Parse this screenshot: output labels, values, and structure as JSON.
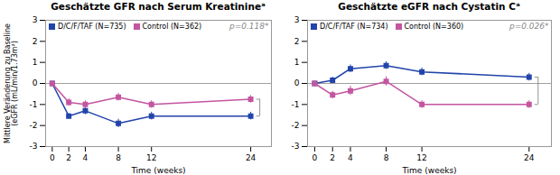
{
  "chart_data": [
    {
      "type": "line",
      "title": "Geschätzte GFR nach Serum Kreatinineᵃ",
      "xlabel": "Time (weeks)",
      "ylabel": "Mittlere Veränderung zu Baseline\n(eGFR (mL/min/1.73m²)",
      "x": [
        0,
        2,
        4,
        8,
        12,
        24
      ],
      "series": [
        {
          "name": "D/C/F/TAF (N=735)",
          "color": "#2244AA",
          "values": [
            0,
            -1.55,
            -1.3,
            -1.9,
            -1.55,
            -1.55
          ],
          "errors": [
            0,
            0.12,
            0.18,
            0.2,
            0.18,
            0.18
          ]
        },
        {
          "name": "Control (N=362)",
          "color": "#C455A0",
          "values": [
            0,
            -0.9,
            -1.0,
            -0.65,
            -1.0,
            -0.75
          ],
          "errors": [
            0,
            0.18,
            0.18,
            0.18,
            0.18,
            0.18
          ]
        }
      ],
      "marker": "square",
      "annotations": [
        "p=0.118*"
      ],
      "hline": 0,
      "xlim": [
        -0.8,
        26.5
      ],
      "xticks": [
        0,
        2,
        4,
        8,
        12,
        24
      ],
      "ylim": [
        -3,
        3
      ],
      "yticks": [
        -3,
        -2,
        -1,
        0,
        1,
        2,
        3
      ],
      "legend": "upper left",
      "grid": false
    },
    {
      "type": "line",
      "title": "Geschätzte eGFR nach Cystatin Cᵃ",
      "xlabel": "Time (weeks)",
      "x": [
        0,
        2,
        4,
        8,
        12,
        24
      ],
      "series": [
        {
          "name": "D/C/F/TAF (N=734)",
          "color": "#2244AA",
          "values": [
            0,
            0.15,
            0.7,
            0.85,
            0.55,
            0.3
          ],
          "errors": [
            0,
            0.15,
            0.18,
            0.18,
            0.18,
            0.18
          ]
        },
        {
          "name": "Control (N=360)",
          "color": "#C455A0",
          "values": [
            0,
            -0.55,
            -0.35,
            0.1,
            -1.0,
            -1.0
          ],
          "errors": [
            0,
            0.18,
            0.22,
            0.22,
            0.18,
            0.18
          ]
        }
      ],
      "marker": "square",
      "annotations": [
        "p=0.026*"
      ],
      "hline": 0,
      "xlim": [
        -0.8,
        26.5
      ],
      "xticks": [
        0,
        2,
        4,
        8,
        12,
        24
      ],
      "ylim": [
        -3,
        3
      ],
      "yticks": [
        -3,
        -2,
        -1,
        0,
        1,
        2,
        3
      ],
      "legend": "upper left",
      "grid": false
    }
  ]
}
